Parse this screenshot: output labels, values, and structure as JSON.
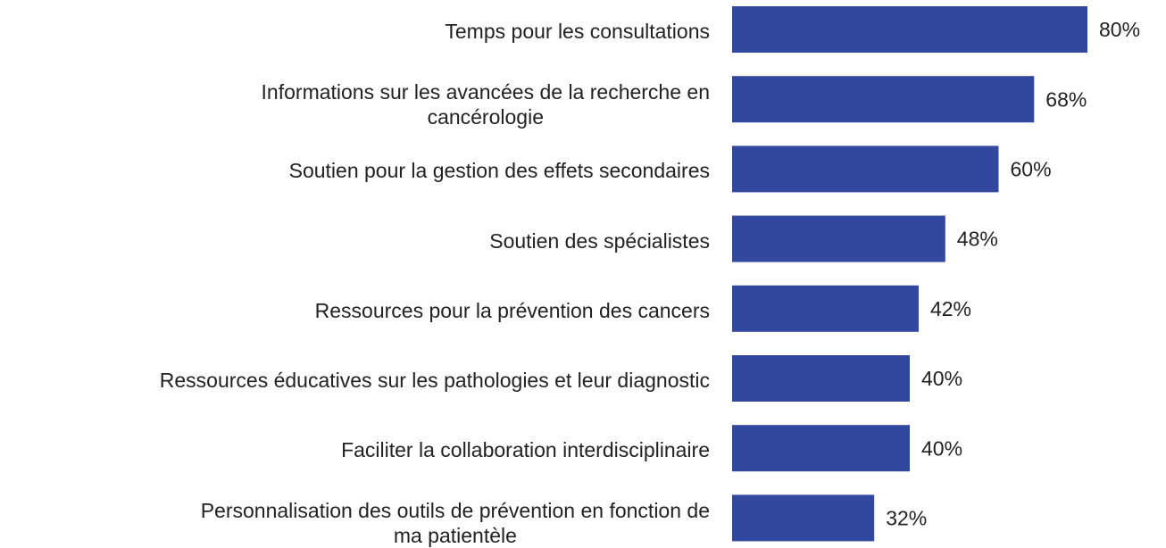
{
  "chart_data": {
    "type": "barh",
    "categories": [
      "Temps pour les consultations",
      "Informations sur les avancées de la recherche en cancérologie",
      "Soutien pour la gestion des effets secondaires",
      "Soutien des spécialistes",
      "Ressources pour la prévention des cancers",
      "Ressources éducatives sur les pathologies et leur diagnostic",
      "Faciliter la collaboration interdisciplinaire",
      "Personnalisation des outils de prévention en fonction de ma patientèle"
    ],
    "values": [
      80,
      68,
      60,
      48,
      42,
      40,
      40,
      32
    ],
    "value_labels": [
      "80%",
      "68%",
      "60%",
      "48%",
      "42%",
      "40%",
      "40%",
      "32%"
    ],
    "color": "#32489e",
    "xlim": [
      0,
      80
    ]
  }
}
